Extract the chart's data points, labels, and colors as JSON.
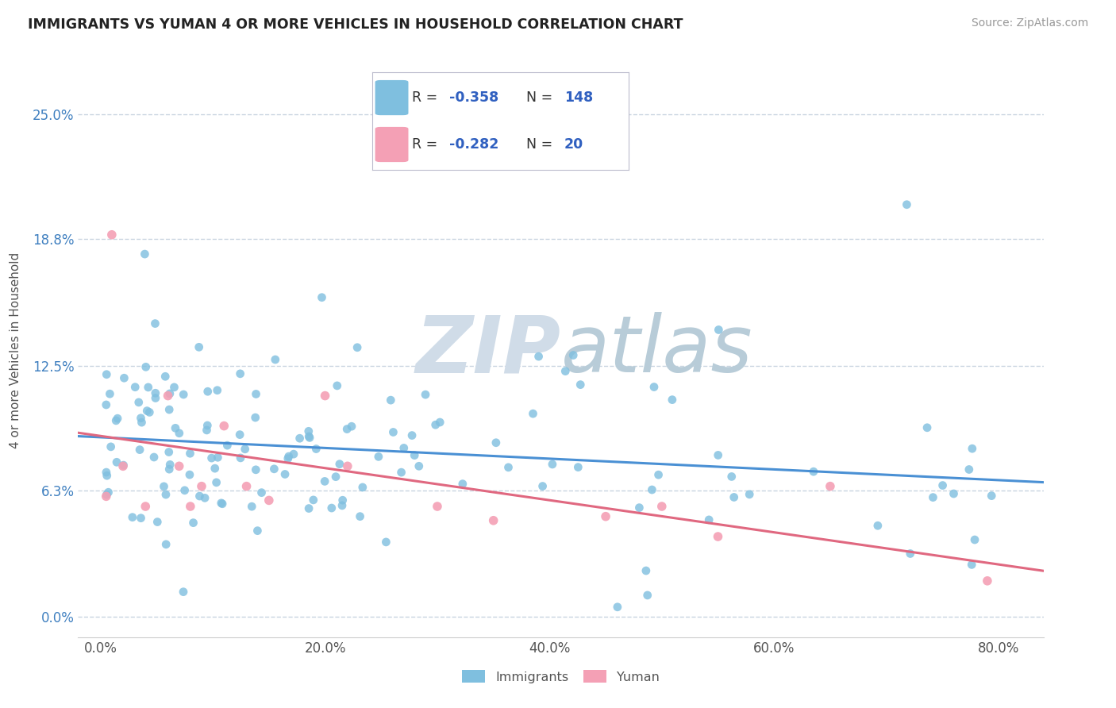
{
  "title": "IMMIGRANTS VS YUMAN 4 OR MORE VEHICLES IN HOUSEHOLD CORRELATION CHART",
  "source": "Source: ZipAtlas.com",
  "ylabel": "4 or more Vehicles in Household",
  "xlabel_ticks": [
    "0.0%",
    "20.0%",
    "40.0%",
    "60.0%",
    "80.0%"
  ],
  "xlabel_vals": [
    0.0,
    0.2,
    0.4,
    0.6,
    0.8
  ],
  "ylabel_ticks": [
    "0.0%",
    "6.3%",
    "12.5%",
    "18.8%",
    "25.0%"
  ],
  "ylabel_vals": [
    0.0,
    0.063,
    0.125,
    0.188,
    0.25
  ],
  "xlim": [
    -0.02,
    0.84
  ],
  "ylim": [
    -0.01,
    0.275
  ],
  "immigrants_R": -0.358,
  "immigrants_N": 148,
  "yuman_R": -0.282,
  "yuman_N": 20,
  "immigrants_color": "#7fbfdf",
  "yuman_color": "#f4a0b5",
  "trendline_immigrants_color": "#4a90d4",
  "trendline_yuman_color": "#e06880",
  "watermark_zip": "ZIP",
  "watermark_atlas": "atlas",
  "watermark_color_zip": "#d0dce8",
  "watermark_color_atlas": "#b8ccd8",
  "legend_R_color": "#3060c0",
  "legend_N_color": "#3060c0",
  "background_color": "#ffffff",
  "grid_color": "#c8d4e0",
  "title_color": "#222222",
  "source_color": "#999999",
  "ylabel_color": "#555555",
  "tick_color_y": "#4080c0",
  "tick_color_x": "#555555"
}
